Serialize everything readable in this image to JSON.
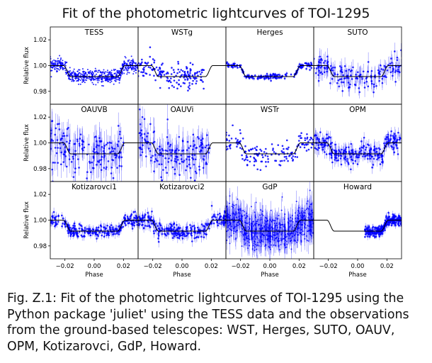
{
  "figure": {
    "title": "Fit of the photometric lightcurves of TOI-1295",
    "caption": "Fig. Z.1: Fit of the photometric lightcurves of TOI-1295 using the Python package 'juliet' using the TESS data and the observations from the ground-based telescopes: WST, Herges, SUTO, OAUV, OPM, Kotizarovci, GdP, Howard."
  },
  "chart_data": {
    "type": "scatter",
    "layout": {
      "rows": 3,
      "cols": 4
    },
    "xlabel": "Phase",
    "ylabel": "Relative flux",
    "xlim": [
      -0.03,
      0.03
    ],
    "ylim": [
      0.97,
      1.03
    ],
    "xticks": [
      -0.02,
      0.0,
      0.02
    ],
    "xtick_labels": [
      "−0.02",
      "0.00",
      "0.02"
    ],
    "yticks": [
      0.98,
      1.0,
      1.02
    ],
    "ytick_labels": [
      "0.98",
      "1.00",
      "1.02"
    ],
    "grid": false,
    "colors": {
      "data": "#0000ff",
      "model": "#000000"
    },
    "model": {
      "baseline": 1.0,
      "transit_depth": 0.0085,
      "ingress_phase": -0.0185,
      "egress_phase": 0.0185,
      "ingress_duration": 0.005
    },
    "panels": [
      {
        "name": "TESS",
        "has_data": true,
        "scatter": 0.0025,
        "xrange": [
          -0.03,
          0.03
        ],
        "density": "very-high",
        "errorbars": false
      },
      {
        "name": "WSTg",
        "has_data": true,
        "scatter": 0.0045,
        "xrange": [
          -0.03,
          0.015
        ],
        "density": "medium",
        "errorbars": false
      },
      {
        "name": "Herges",
        "has_data": true,
        "scatter": 0.0012,
        "xrange": [
          -0.03,
          0.03
        ],
        "density": "medium",
        "errorbars": true
      },
      {
        "name": "SUTO",
        "has_data": true,
        "scatter": 0.005,
        "xrange": [
          -0.03,
          0.03
        ],
        "density": "medium",
        "errorbars": true
      },
      {
        "name": "OAUVB",
        "has_data": true,
        "scatter": 0.009,
        "xrange": [
          -0.03,
          0.02
        ],
        "density": "medium",
        "errorbars": true
      },
      {
        "name": "OAUVi",
        "has_data": true,
        "scatter": 0.008,
        "xrange": [
          -0.03,
          0.02
        ],
        "density": "medium",
        "errorbars": true
      },
      {
        "name": "WSTr",
        "has_data": true,
        "scatter": 0.004,
        "xrange": [
          -0.03,
          0.03
        ],
        "density": "medium",
        "errorbars": false
      },
      {
        "name": "OPM",
        "has_data": true,
        "scatter": 0.004,
        "xrange": [
          -0.03,
          0.03
        ],
        "density": "high",
        "errorbars": true
      },
      {
        "name": "Kotizarovci1",
        "has_data": true,
        "scatter": 0.0025,
        "xrange": [
          -0.03,
          0.03
        ],
        "density": "high",
        "errorbars": true
      },
      {
        "name": "Kotizarovci2",
        "has_data": true,
        "scatter": 0.003,
        "xrange": [
          -0.03,
          0.03
        ],
        "density": "high",
        "errorbars": true
      },
      {
        "name": "GdP",
        "has_data": true,
        "scatter": 0.007,
        "xrange": [
          -0.03,
          0.03
        ],
        "density": "very-high",
        "errorbars": true
      },
      {
        "name": "Howard",
        "has_data": true,
        "scatter": 0.002,
        "xrange": [
          0.005,
          0.03
        ],
        "density": "high",
        "errorbars": true
      }
    ]
  }
}
